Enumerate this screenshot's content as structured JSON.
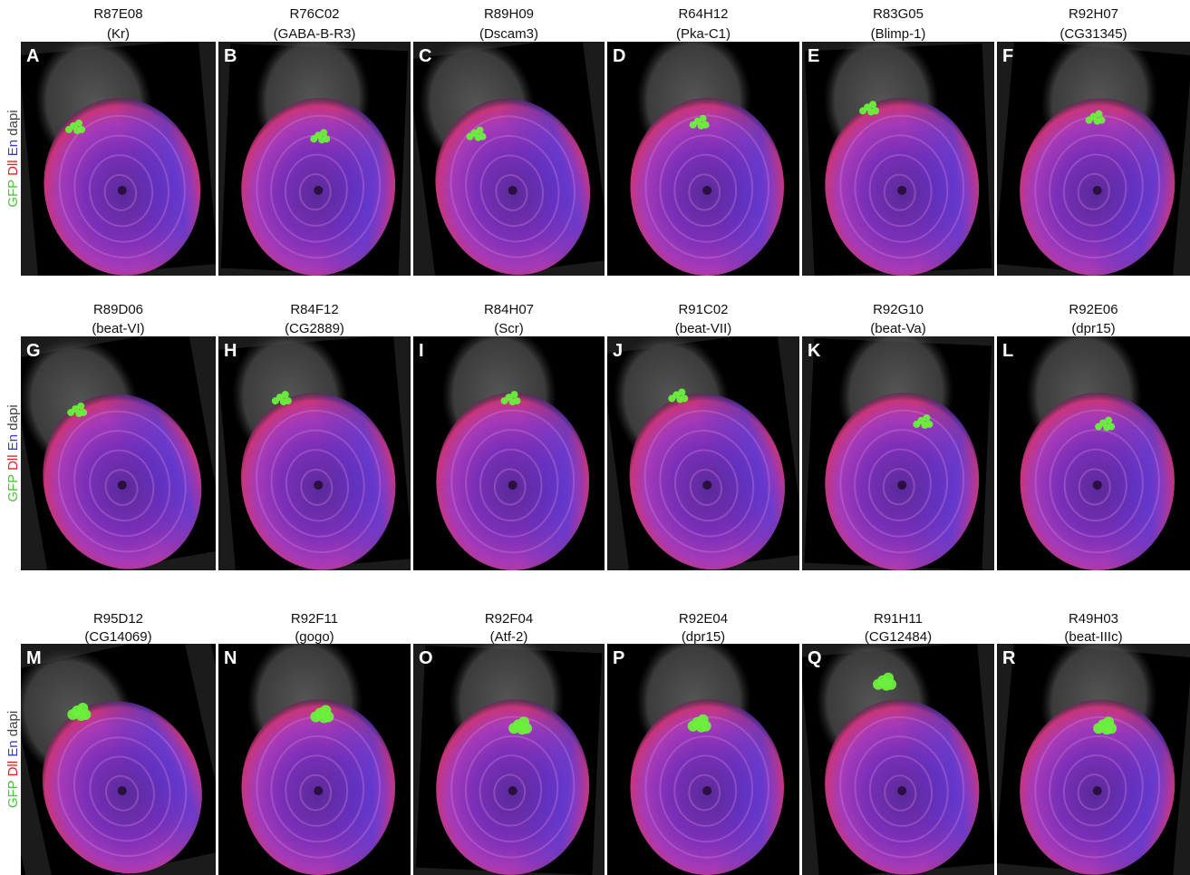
{
  "rows": [
    {
      "label": [
        "GFP",
        "Dll",
        "En",
        "dapi"
      ],
      "panels": [
        {
          "letter": "A",
          "line": "R87E08",
          "gene": "(Kr)"
        },
        {
          "letter": "B",
          "line": "R76C02",
          "gene": "(GABA-B-R3)"
        },
        {
          "letter": "C",
          "line": "R89H09",
          "gene": "(Dscam3)"
        },
        {
          "letter": "D",
          "line": "R64H12",
          "gene": "(Pka-C1)"
        },
        {
          "letter": "E",
          "line": "R83G05",
          "gene": "(Blimp-1)"
        },
        {
          "letter": "F",
          "line": "R92H07",
          "gene": "(CG31345)"
        }
      ]
    },
    {
      "label": [
        "GFP",
        "Dll",
        "En",
        "dapi"
      ],
      "panels": [
        {
          "letter": "G",
          "line": "R89D06",
          "gene": "(beat-VI)"
        },
        {
          "letter": "H",
          "line": "R84F12",
          "gene": "(CG2889)"
        },
        {
          "letter": "I",
          "line": "R84H07",
          "gene": "(Scr)"
        },
        {
          "letter": "J",
          "line": "R91C02",
          "gene": "(beat-VII)"
        },
        {
          "letter": "K",
          "line": "R92G10",
          "gene": "(beat-Va)"
        },
        {
          "letter": "L",
          "line": "R92E06",
          "gene": "(dpr15)"
        }
      ]
    },
    {
      "label": [
        "GFP",
        "Dll",
        "En",
        "dapi"
      ],
      "panels": [
        {
          "letter": "M",
          "line": "R95D12",
          "gene": "(CG14069)"
        },
        {
          "letter": "N",
          "line": "R92F11",
          "gene": "(gogo)"
        },
        {
          "letter": "O",
          "line": "R92F04",
          "gene": "(Atf-2)"
        },
        {
          "letter": "P",
          "line": "R92E04",
          "gene": "(dpr15)"
        },
        {
          "letter": "Q",
          "line": "R91H11",
          "gene": "(CG12484)"
        },
        {
          "letter": "R",
          "line": "R49H03",
          "gene": "(beat-IIIc)"
        }
      ]
    }
  ]
}
